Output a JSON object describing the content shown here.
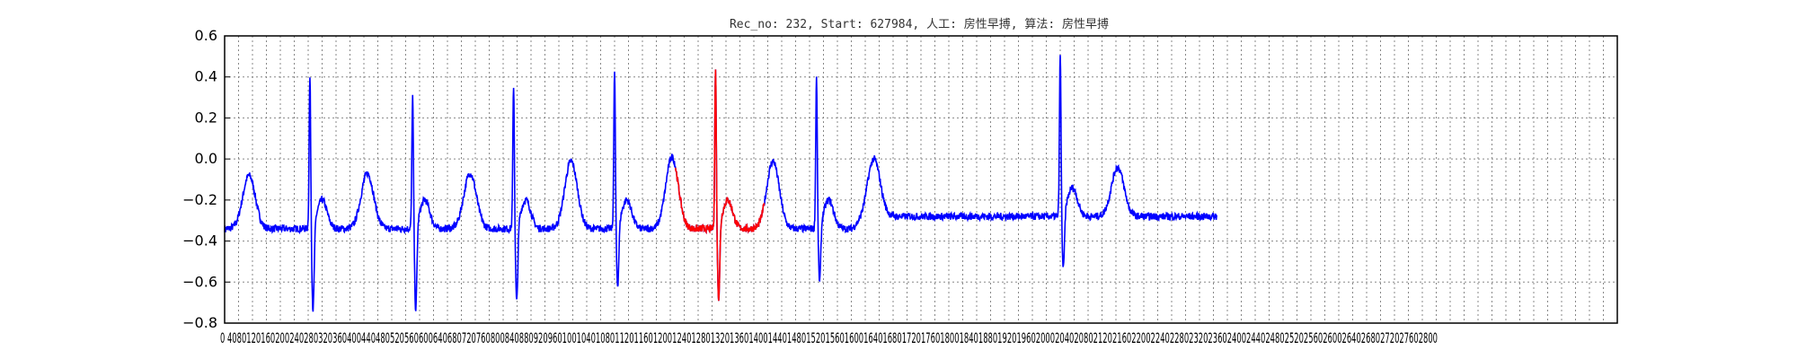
{
  "chart_data": {
    "type": "line",
    "title": "Rec_no: 232, Start: 627984, 人工: 房性早搏, 算法: 房性早搏",
    "xlabel": "",
    "ylabel": "",
    "xlim": [
      0,
      4000
    ],
    "ylim": [
      -0.8,
      0.6
    ],
    "yticks": [
      -0.8,
      -0.6,
      -0.4,
      -0.2,
      0.0,
      0.2,
      0.4,
      0.6
    ],
    "ytick_labels": [
      "−0.8",
      "−0.6",
      "−0.4",
      "−0.2",
      "0.0",
      "0.2",
      "0.4",
      "0.6"
    ],
    "xtick_step": 40,
    "xtick_labels_text": "0 4080120160200240280320360400440480520560600640680720760800840880920960100104010801120116012001240128013201360140014401480152015601600164016801720176018001840188019201960200020402080212021602200224022802320236024002440248025202560260026402680272027602800",
    "grid": true,
    "sample_count": 2850,
    "series": [
      {
        "role": "ecg",
        "color": "#0000ff",
        "x_range": [
          0,
          2850
        ]
      },
      {
        "role": "highlight",
        "color": "#ff0000",
        "x_range": [
          1295,
          1550
        ]
      }
    ],
    "beats": [
      {
        "x": 70,
        "r": 0,
        "t": -0.08,
        "s": 0,
        "qrs": false
      },
      {
        "x": 245,
        "r": 0.4,
        "t": -0.07,
        "s": -0.76,
        "qrs": true
      },
      {
        "x": 540,
        "r": 0.31,
        "t": -0.07,
        "s": -0.76,
        "qrs": true
      },
      {
        "x": 830,
        "r": 0.36,
        "t": -0.01,
        "s": -0.72,
        "qrs": true
      },
      {
        "x": 1120,
        "r": 0.43,
        "t": 0.01,
        "s": -0.64,
        "qrs": true
      },
      {
        "x": 1410,
        "r": 0.43,
        "t": -0.01,
        "s": -0.7,
        "qrs": true
      },
      {
        "x": 1700,
        "r": 0.4,
        "t": 0.0,
        "s": -0.62,
        "qrs": true
      },
      {
        "x": 2400,
        "r": 0.51,
        "t": -0.04,
        "s": -0.56,
        "qrs": true
      }
    ],
    "baseline": -0.34,
    "late_baseline": -0.28
  }
}
